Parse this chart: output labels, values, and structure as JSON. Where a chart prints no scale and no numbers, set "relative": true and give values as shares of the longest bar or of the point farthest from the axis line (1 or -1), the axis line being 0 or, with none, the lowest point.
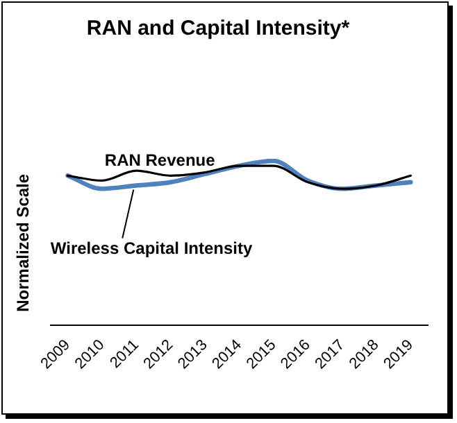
{
  "chart_data": {
    "type": "line",
    "title": "RAN and Capital Intensity*",
    "ylabel": "Normalized Scale",
    "relative": true,
    "legend": false,
    "grid": false,
    "marker": "none",
    "categories": [
      "2009",
      "2010",
      "2011",
      "2012",
      "2013",
      "2014",
      "2015",
      "2016",
      "2017",
      "2018",
      "2019"
    ],
    "series": [
      {
        "name": "RAN Revenue",
        "color": "#000000",
        "values": [
          0.91,
          0.88,
          0.94,
          0.91,
          0.93,
          0.97,
          0.97,
          0.87,
          0.83,
          0.85,
          0.91
        ]
      },
      {
        "name": "Wireless Capital Intensity",
        "color": "#4f81bd",
        "values": [
          0.91,
          0.83,
          0.85,
          0.87,
          0.92,
          0.97,
          1,
          0.88,
          0.83,
          0.85,
          0.87
        ]
      }
    ]
  }
}
